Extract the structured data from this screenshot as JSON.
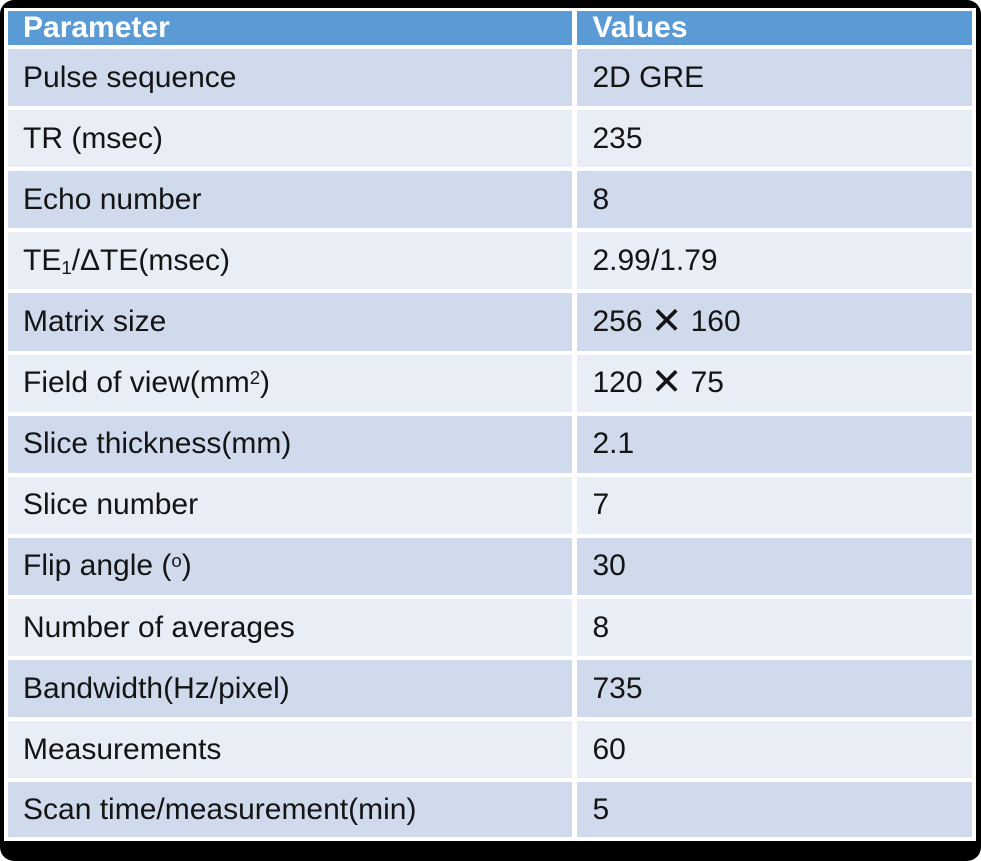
{
  "colors": {
    "frame": "#000000",
    "header_bg": "#5B9BD5",
    "header_text": "#FFFFFF",
    "row_dark": "#CFDBEC",
    "row_light": "#E9EDF6",
    "separator": "#FFFFFF",
    "body_text": "#141414"
  },
  "table": {
    "columns": [
      "Parameter",
      "Values"
    ],
    "rows": [
      {
        "param": [
          {
            "t": "Pulse sequence"
          }
        ],
        "value": [
          {
            "t": "2D GRE"
          }
        ]
      },
      {
        "param": [
          {
            "t": "TR (msec)"
          }
        ],
        "value": [
          {
            "t": "235"
          }
        ]
      },
      {
        "param": [
          {
            "t": "Echo number"
          }
        ],
        "value": [
          {
            "t": "8"
          }
        ]
      },
      {
        "param": [
          {
            "t": "TE"
          },
          {
            "t": "1",
            "style": "sub"
          },
          {
            "t": "/ΔTE(msec)"
          }
        ],
        "value": [
          {
            "t": "2.99/1.79"
          }
        ]
      },
      {
        "param": [
          {
            "t": "Matrix size"
          }
        ],
        "value": [
          {
            "t": "256 "
          },
          {
            "t": "✕",
            "style": "times"
          },
          {
            "t": " 160"
          }
        ]
      },
      {
        "param": [
          {
            "t": "Field of view(mm"
          },
          {
            "t": "2",
            "style": "sup"
          },
          {
            "t": ")"
          }
        ],
        "value": [
          {
            "t": "120 "
          },
          {
            "t": "✕",
            "style": "times"
          },
          {
            "t": " 75"
          }
        ]
      },
      {
        "param": [
          {
            "t": "Slice thickness(mm)"
          }
        ],
        "value": [
          {
            "t": "2.1"
          }
        ]
      },
      {
        "param": [
          {
            "t": "Slice number"
          }
        ],
        "value": [
          {
            "t": "7"
          }
        ]
      },
      {
        "param": [
          {
            "t": "Flip angle ("
          },
          {
            "t": "o",
            "style": "sup"
          },
          {
            "t": ")"
          }
        ],
        "value": [
          {
            "t": "30"
          }
        ]
      },
      {
        "param": [
          {
            "t": "Number of averages"
          }
        ],
        "value": [
          {
            "t": "8"
          }
        ]
      },
      {
        "param": [
          {
            "t": "Bandwidth(Hz/pixel)"
          }
        ],
        "value": [
          {
            "t": "735"
          }
        ]
      },
      {
        "param": [
          {
            "t": "Measurements"
          }
        ],
        "value": [
          {
            "t": "60"
          }
        ]
      },
      {
        "param": [
          {
            "t": "Scan time/measurement(min)"
          }
        ],
        "value": [
          {
            "t": "5"
          }
        ]
      }
    ]
  }
}
